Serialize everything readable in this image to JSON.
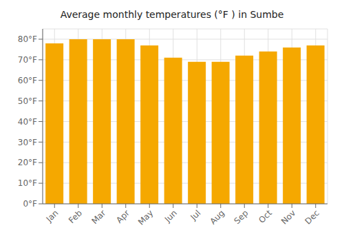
{
  "chart_data": {
    "type": "bar",
    "title": "Average monthly temperatures (°F ) in Sumbe",
    "categories": [
      "Jan",
      "Feb",
      "Mar",
      "Apr",
      "May",
      "Jun",
      "Jul",
      "Aug",
      "Sep",
      "Oct",
      "Nov",
      "Dec"
    ],
    "values": [
      78,
      80,
      80,
      80,
      77,
      71,
      69,
      69,
      72,
      74,
      76,
      77
    ],
    "color": "#F5A800",
    "ylim": [
      0,
      85
    ],
    "yticks": [
      {
        "value": 0,
        "label": "0°F"
      },
      {
        "value": 10,
        "label": "10°F"
      },
      {
        "value": 20,
        "label": "20°F"
      },
      {
        "value": 30,
        "label": "30°F"
      },
      {
        "value": 40,
        "label": "40°F"
      },
      {
        "value": 50,
        "label": "50°F"
      },
      {
        "value": 60,
        "label": "60°F"
      },
      {
        "value": 70,
        "label": "70°F"
      },
      {
        "value": 80,
        "label": "80°F"
      }
    ],
    "grid": true
  }
}
